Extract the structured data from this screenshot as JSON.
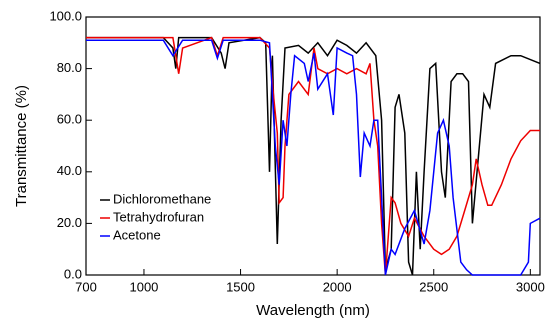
{
  "chart_data": {
    "type": "line",
    "xlabel": "Wavelength (nm)",
    "ylabel": "Transmittance (%)",
    "xlim": [
      700,
      3050
    ],
    "ylim": [
      0,
      100
    ],
    "xticks": [
      700,
      1000,
      1500,
      2000,
      2500,
      3000
    ],
    "yticks": [
      {
        "value": 0,
        "label": "0.0"
      },
      {
        "value": 20,
        "label": "20.0"
      },
      {
        "value": 40,
        "label": "40.0"
      },
      {
        "value": 60,
        "label": "60.0"
      },
      {
        "value": 80,
        "label": "80.0"
      },
      {
        "value": 100,
        "label": "100.0"
      }
    ],
    "legend": "lower-left",
    "series": [
      {
        "name": "Dichloromethane",
        "color": "#000000",
        "x": [
          700,
          1100,
          1150,
          1165,
          1180,
          1350,
          1400,
          1420,
          1440,
          1600,
          1630,
          1650,
          1665,
          1690,
          1710,
          1730,
          1800,
          1850,
          1900,
          1950,
          2000,
          2050,
          2100,
          2150,
          2200,
          2230,
          2250,
          2280,
          2300,
          2320,
          2350,
          2370,
          2390,
          2410,
          2430,
          2450,
          2480,
          2510,
          2540,
          2560,
          2590,
          2620,
          2650,
          2680,
          2700,
          2730,
          2760,
          2790,
          2820,
          2900,
          2950,
          3050
        ],
        "values": [
          92,
          92,
          88,
          80,
          92,
          92,
          86,
          80,
          90,
          92,
          90,
          40,
          85,
          12,
          60,
          88,
          89,
          86,
          90,
          85,
          91,
          89,
          86,
          90,
          85,
          60,
          2,
          10,
          65,
          70,
          55,
          5,
          0,
          40,
          10,
          40,
          80,
          82,
          40,
          30,
          75,
          78,
          78,
          75,
          20,
          45,
          70,
          65,
          82,
          85,
          85,
          82
        ]
      },
      {
        "name": "Tetrahydrofuran",
        "color": "#ee0000",
        "x": [
          700,
          1150,
          1180,
          1200,
          1350,
          1380,
          1410,
          1600,
          1650,
          1670,
          1690,
          1700,
          1720,
          1730,
          1750,
          1800,
          1850,
          1880,
          1900,
          1950,
          2000,
          2050,
          2100,
          2150,
          2170,
          2190,
          2210,
          2230,
          2250,
          2280,
          2300,
          2330,
          2370,
          2400,
          2450,
          2500,
          2540,
          2580,
          2620,
          2660,
          2700,
          2720,
          2750,
          2780,
          2800,
          2850,
          2900,
          2950,
          3000,
          3050
        ],
        "values": [
          92,
          92,
          78,
          88,
          92,
          85,
          92,
          92,
          88,
          70,
          55,
          28,
          30,
          50,
          70,
          75,
          70,
          88,
          80,
          78,
          80,
          78,
          80,
          78,
          82,
          60,
          50,
          20,
          0,
          30,
          28,
          20,
          15,
          22,
          15,
          10,
          8,
          10,
          15,
          25,
          35,
          45,
          35,
          27,
          27,
          35,
          45,
          52,
          56,
          56
        ]
      },
      {
        "name": "Acetone",
        "color": "#0000ff",
        "x": [
          700,
          1100,
          1150,
          1200,
          1350,
          1380,
          1410,
          1600,
          1650,
          1680,
          1700,
          1720,
          1740,
          1760,
          1780,
          1830,
          1850,
          1880,
          1900,
          1950,
          1980,
          2000,
          2050,
          2080,
          2100,
          2120,
          2140,
          2170,
          2190,
          2210,
          2230,
          2250,
          2280,
          2300,
          2350,
          2400,
          2450,
          2480,
          2520,
          2550,
          2580,
          2600,
          2640,
          2670,
          2700,
          2800,
          2950,
          2990,
          3000,
          3050
        ],
        "values": [
          91,
          91,
          85,
          91,
          91,
          84,
          91,
          91,
          90,
          50,
          35,
          60,
          50,
          70,
          85,
          82,
          75,
          86,
          72,
          78,
          62,
          88,
          86,
          85,
          70,
          38,
          55,
          50,
          60,
          60,
          30,
          0,
          10,
          8,
          18,
          25,
          12,
          25,
          55,
          60,
          50,
          30,
          5,
          2,
          0,
          0,
          0,
          5,
          20,
          22
        ]
      }
    ]
  }
}
